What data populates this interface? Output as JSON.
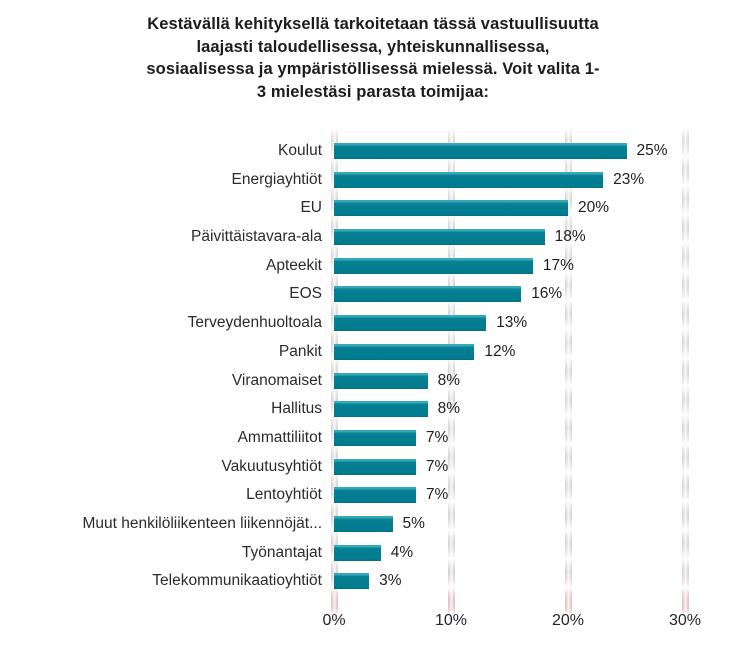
{
  "title": {
    "lines": [
      "Kestävällä kehityksellä tarkoitetaan tässä vastuullisuutta",
      "laajasti taloudellisessa, yhteiskunnallisessa,",
      "sosiaalisessa ja ympäristöllisessä mielessä. Voit valita 1-",
      "3 mielestäsi parasta toimijaa:"
    ]
  },
  "chart_data": {
    "type": "bar",
    "orientation": "horizontal",
    "title": "Kestävällä kehityksellä tarkoitetaan tässä vastuullisuutta laajasti taloudellisessa, yhteiskunnallisessa, sosiaalisessa ja ympäristöllisessä mielessä. Voit valita 1-3 mielestäsi parasta toimijaa:",
    "categories": [
      "Koulut",
      "Energiayhtiöt",
      "EU",
      "Päivittäistavara-ala",
      "Apteekit",
      "EOS",
      "Terveydenhuoltoala",
      "Pankit",
      "Viranomaiset",
      "Hallitus",
      "Ammattiliitot",
      "Vakuutusyhtiöt",
      "Lentoyhtiöt",
      "Muut henkilöliikenteen liikennöjät...",
      "Työnantajat",
      "Telekommunikaatioyhtiöt"
    ],
    "values": [
      25,
      23,
      20,
      18,
      17,
      16,
      13,
      12,
      8,
      8,
      7,
      7,
      7,
      5,
      4,
      3
    ],
    "value_labels": [
      "25%",
      "23%",
      "20%",
      "18%",
      "17%",
      "16%",
      "13%",
      "12%",
      "8%",
      "8%",
      "7%",
      "7%",
      "7%",
      "5%",
      "4%",
      "3%"
    ],
    "xlabel": "",
    "ylabel": "",
    "xlim": [
      0,
      30
    ],
    "x_ticks": [
      "0%",
      "10%",
      "20%",
      "30%"
    ],
    "grid": true,
    "legend": "none",
    "bar_color": "#017d8f",
    "bar_highlight_color": "#35a9ba",
    "gridline_color": "#d9d6d5",
    "text_color": "#262626"
  }
}
